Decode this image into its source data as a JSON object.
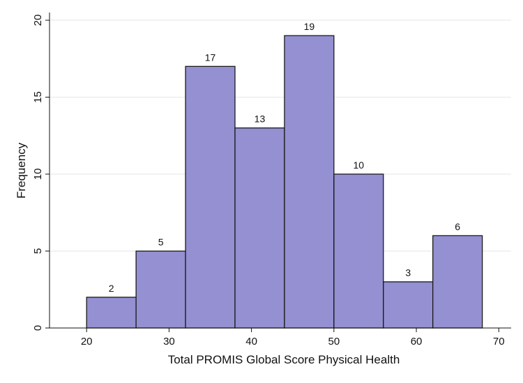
{
  "chart_data": {
    "type": "bar",
    "title": "",
    "xlabel": "Total PROMIS Global Score Physical Health",
    "ylabel": "Frequency",
    "bins": [
      {
        "start": 20,
        "end": 26,
        "value": 2
      },
      {
        "start": 26,
        "end": 32,
        "value": 5
      },
      {
        "start": 32,
        "end": 38,
        "value": 17
      },
      {
        "start": 38,
        "end": 44,
        "value": 13
      },
      {
        "start": 44,
        "end": 50,
        "value": 19
      },
      {
        "start": 50,
        "end": 56,
        "value": 10
      },
      {
        "start": 56,
        "end": 62,
        "value": 3
      },
      {
        "start": 62,
        "end": 68,
        "value": 6
      }
    ],
    "xlim": [
      15.5,
      71.5
    ],
    "ylim": [
      0,
      20.5
    ],
    "xticks": [
      20,
      30,
      40,
      50,
      60,
      70
    ],
    "yticks": [
      0,
      5,
      10,
      15,
      20
    ],
    "grid": "horizontal",
    "bar_color": "#9490D2",
    "bar_edge_color": "#1a1a1a",
    "grid_color": "#e6e6e6"
  }
}
